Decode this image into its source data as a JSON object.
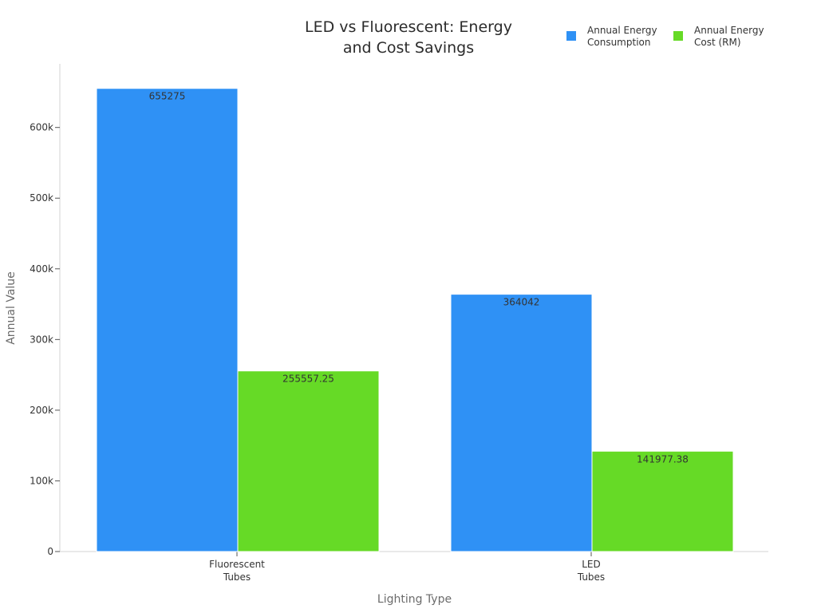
{
  "chart_data": {
    "type": "bar",
    "title_lines": [
      "LED vs Fluorescent: Energy",
      "and Cost Savings"
    ],
    "xlabel": "Lighting Type",
    "ylabel": "Annual Value",
    "categories": [
      [
        "Fluorescent",
        "Tubes"
      ],
      [
        "LED",
        "Tubes"
      ]
    ],
    "series": [
      {
        "name_lines": [
          "Annual Energy",
          "Consumption"
        ],
        "color": "#2f91f5",
        "values": [
          655275,
          364042
        ],
        "labels": [
          "655275",
          "364042"
        ]
      },
      {
        "name_lines": [
          "Annual Energy",
          "Cost (RM)"
        ],
        "color": "#66da26",
        "values": [
          255557.25,
          141977.38
        ],
        "labels": [
          "255557.25",
          "141977.38"
        ]
      }
    ],
    "ylim": [
      0,
      690000
    ],
    "yticks": [
      {
        "value": 0,
        "label": "0"
      },
      {
        "value": 100000,
        "label": "100k"
      },
      {
        "value": 200000,
        "label": "200k"
      },
      {
        "value": 300000,
        "label": "300k"
      },
      {
        "value": 400000,
        "label": "400k"
      },
      {
        "value": 500000,
        "label": "500k"
      },
      {
        "value": 600000,
        "label": "600k"
      }
    ],
    "grid": false,
    "legend_position": "top-right"
  }
}
